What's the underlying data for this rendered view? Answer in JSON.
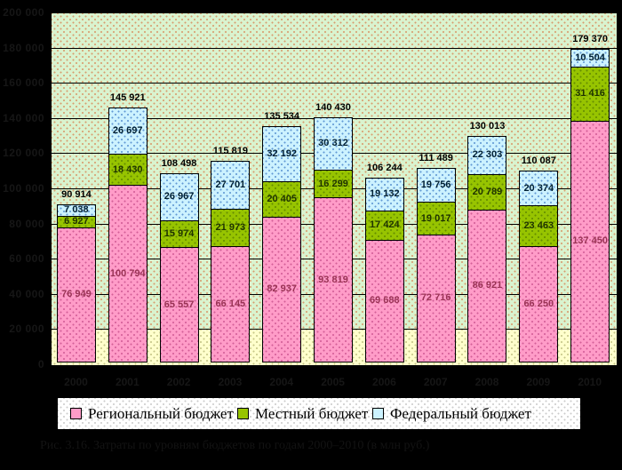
{
  "figure": {
    "caption": {
      "text": "Рис. 3.16. Затраты по уровням бюджетов по годам 2000–2010 (в млн руб.)",
      "legible": false,
      "note": "caption rendered as black text on black background in source image"
    }
  },
  "chart_data": {
    "type": "bar",
    "stacked": true,
    "title": "",
    "xlabel": "",
    "ylabel": "",
    "categories": [
      "2000",
      "2001",
      "2002",
      "2003",
      "2004",
      "2005",
      "2006",
      "2007",
      "2008",
      "2009",
      "2010"
    ],
    "series": [
      {
        "name": "Региональный бюджет",
        "color": "#ff9cc8",
        "dot_color": "rgba(200,80,140,.8)",
        "label_color": "#993355",
        "values": [
          76949,
          100794,
          65557,
          66145,
          82937,
          93819,
          69688,
          72716,
          86921,
          66250,
          137450
        ]
      },
      {
        "name": "Местный бюджет",
        "color": "#97c400",
        "dot_color": "rgba(95,135,0,.9)",
        "label_color": "#1f3300",
        "values": [
          6927,
          18430,
          15974,
          21973,
          20405,
          16299,
          17424,
          19017,
          20789,
          23463,
          31416
        ]
      },
      {
        "name": "Федеральный бюджет",
        "color": "#ccf2ff",
        "dot_color": "rgba(70,130,200,.8)",
        "label_color": "#002033",
        "values": [
          7038,
          26697,
          26967,
          27701,
          32192,
          30312,
          19132,
          19756,
          22303,
          20374,
          10504
        ]
      }
    ],
    "totals": [
      90914,
      145921,
      108498,
      115819,
      135534,
      140430,
      106244,
      111489,
      130013,
      110087,
      179370
    ],
    "ylim": [
      0,
      200000
    ],
    "ytick_step": 20000,
    "ytick_labels": [
      "0",
      "20 000",
      "40 000",
      "60 000",
      "80 000",
      "100 000",
      "120 000",
      "140 000",
      "160 000",
      "180 000",
      "200 000"
    ],
    "grid": true,
    "legend_position": "bottom",
    "background_bands": {
      "lower_band_max": 20000,
      "lower_band_color": "#ffffcc",
      "upper_color": "#d9f3cf"
    }
  }
}
